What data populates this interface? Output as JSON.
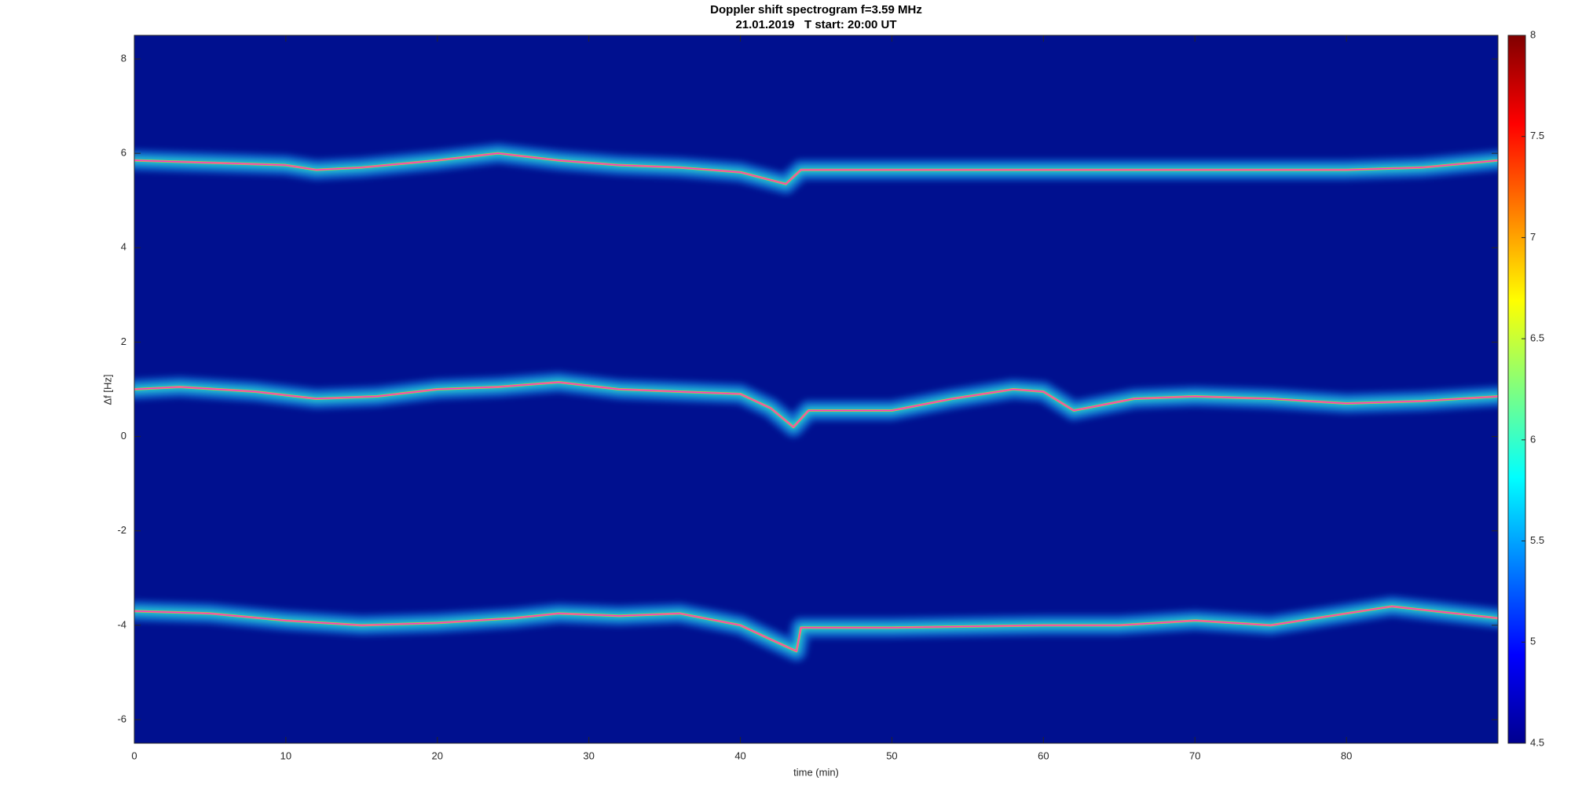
{
  "chart_data": {
    "type": "spectrogram",
    "title": "Doppler shift spectrogram f=3.59 MHz",
    "subtitle": "21.01.2019   T start: 20:00 UT",
    "xlabel": "time (min)",
    "ylabel": "Δf [Hz]",
    "xlim": [
      0,
      90
    ],
    "xticks": [
      0,
      10,
      20,
      30,
      40,
      50,
      60,
      70,
      80
    ],
    "ylim": [
      -6.5,
      8.5
    ],
    "yticks": [
      -6,
      -4,
      -2,
      0,
      2,
      4,
      6,
      8
    ],
    "clim": [
      4.5,
      8
    ],
    "cticks": [
      4.5,
      5,
      5.5,
      6,
      6.5,
      7,
      7.5,
      8
    ],
    "grid": false,
    "series": [
      {
        "color": "#ff33cc",
        "x": [
          0,
          5,
          10,
          12,
          15,
          20,
          24,
          28,
          32,
          36,
          40,
          43,
          44,
          50,
          60,
          70,
          80,
          85,
          90
        ],
        "values": [
          5.85,
          5.8,
          5.75,
          5.65,
          5.7,
          5.85,
          6.0,
          5.85,
          5.75,
          5.7,
          5.6,
          5.35,
          5.65,
          5.65,
          5.65,
          5.65,
          5.65,
          5.7,
          5.85
        ]
      },
      {
        "color": "#ff33cc",
        "x": [
          0,
          3,
          8,
          12,
          16,
          20,
          24,
          28,
          32,
          36,
          40,
          42,
          43.5,
          44.5,
          50,
          54,
          58,
          60,
          62,
          66,
          70,
          75,
          80,
          85,
          90
        ],
        "values": [
          1.0,
          1.05,
          0.95,
          0.8,
          0.85,
          1.0,
          1.05,
          1.15,
          1.0,
          0.95,
          0.9,
          0.6,
          0.2,
          0.55,
          0.55,
          0.8,
          1.0,
          0.95,
          0.55,
          0.8,
          0.85,
          0.8,
          0.7,
          0.75,
          0.85
        ]
      },
      {
        "color": "#ff33cc",
        "x": [
          0,
          5,
          10,
          15,
          20,
          25,
          28,
          32,
          36,
          40,
          42,
          43.7,
          44,
          50,
          60,
          65,
          70,
          75,
          80,
          83,
          90
        ],
        "values": [
          -3.7,
          -3.75,
          -3.9,
          -4.0,
          -3.95,
          -3.85,
          -3.75,
          -3.8,
          -3.75,
          -4.0,
          -4.3,
          -4.55,
          -4.05,
          -4.05,
          -4.0,
          -4.0,
          -3.9,
          -4.0,
          -3.75,
          -3.6,
          -3.85
        ]
      }
    ]
  }
}
